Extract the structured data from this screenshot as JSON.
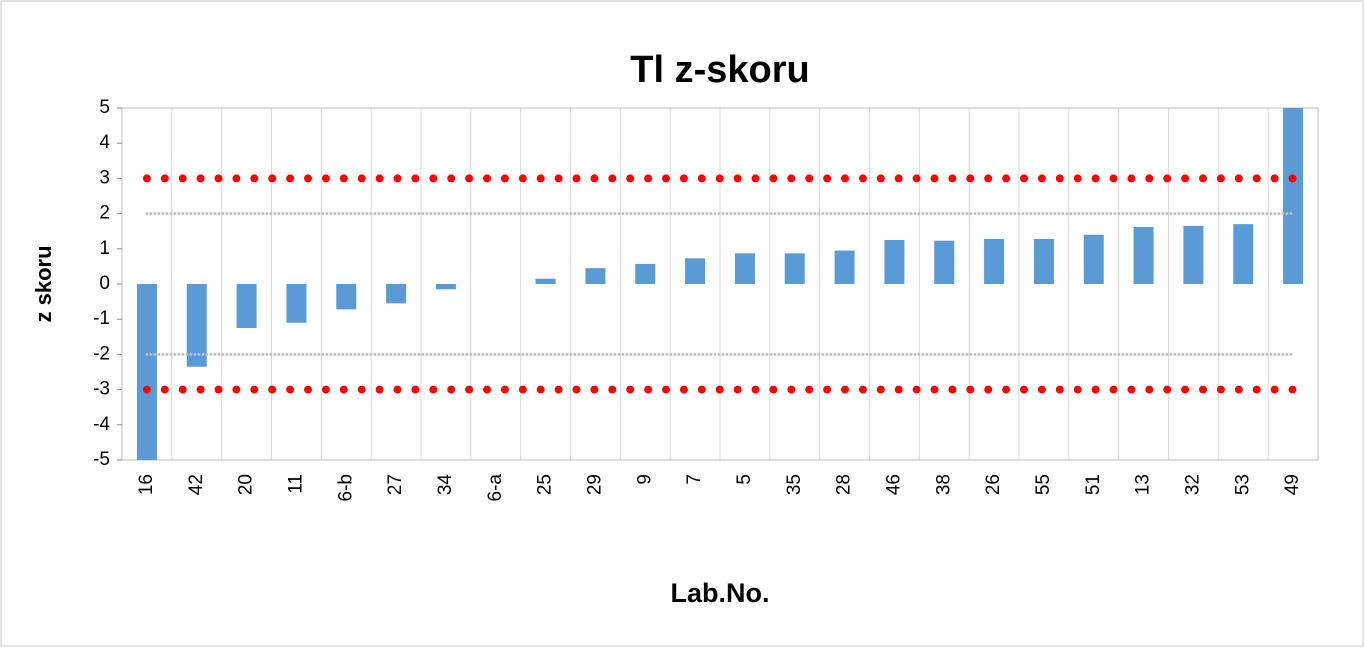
{
  "chart_data": {
    "type": "bar",
    "title": "Tl z-skoru",
    "x_label": "Lab.No.",
    "y_label": "z skoru",
    "categories": [
      "16",
      "42",
      "20",
      "11",
      "6-b",
      "27",
      "34",
      "6-a",
      "25",
      "29",
      "9",
      "7",
      "5",
      "35",
      "28",
      "46",
      "38",
      "26",
      "55",
      "51",
      "13",
      "32",
      "53",
      "49"
    ],
    "values": [
      -5,
      -2.35,
      -1.25,
      -1.1,
      -0.72,
      -0.55,
      -0.15,
      0,
      0.15,
      0.45,
      0.57,
      0.73,
      0.87,
      0.87,
      0.95,
      1.25,
      1.23,
      1.28,
      1.28,
      1.4,
      1.62,
      1.65,
      1.7,
      5
    ],
    "color": "#5b9bd5",
    "ylim": [
      -5,
      5
    ],
    "yticks": [
      -5,
      -4,
      -3,
      -2,
      -1,
      0,
      1,
      2,
      3,
      4,
      5
    ],
    "reference_lines": [
      {
        "value": 3,
        "color": "#ff0000"
      },
      {
        "value": -3,
        "color": "#ff0000"
      },
      {
        "value": 2,
        "color": "#bfbfbf"
      },
      {
        "value": -2,
        "color": "#bfbfbf"
      }
    ],
    "grid": true
  }
}
